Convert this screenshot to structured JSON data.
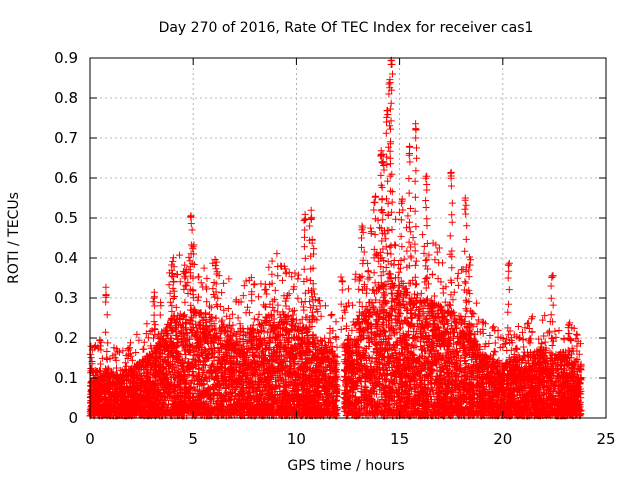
{
  "chart_data": {
    "type": "scatter",
    "title": "Day 270 of 2016, Rate Of TEC Index for receiver cas1",
    "xlabel": "GPS time / hours",
    "ylabel": "ROTI / TECUs",
    "xlim": [
      0,
      25
    ],
    "ylim": [
      0,
      0.9
    ],
    "xticks": [
      "0",
      "5",
      "10",
      "15",
      "20",
      "25"
    ],
    "yticks": [
      "0",
      "0.1",
      "0.2",
      "0.3",
      "0.4",
      "0.5",
      "0.6",
      "0.7",
      "0.8",
      "0.9"
    ],
    "grid": true,
    "marker": "plus",
    "color": "#ff0000",
    "data_extent": {
      "x_min": 0.0,
      "x_max": 23.8,
      "gap": [
        12.0,
        12.3
      ]
    },
    "peaks": [
      {
        "x": 0.5,
        "y": 0.21
      },
      {
        "x": 0.8,
        "y": 0.33
      },
      {
        "x": 3.1,
        "y": 0.32
      },
      {
        "x": 4.0,
        "y": 0.38
      },
      {
        "x": 4.6,
        "y": 0.37
      },
      {
        "x": 4.9,
        "y": 0.51
      },
      {
        "x": 5.0,
        "y": 0.45
      },
      {
        "x": 6.1,
        "y": 0.4
      },
      {
        "x": 8.5,
        "y": 0.35
      },
      {
        "x": 10.4,
        "y": 0.51
      },
      {
        "x": 10.7,
        "y": 0.52
      },
      {
        "x": 10.8,
        "y": 0.45
      },
      {
        "x": 12.2,
        "y": 0.36
      },
      {
        "x": 13.2,
        "y": 0.49
      },
      {
        "x": 13.8,
        "y": 0.56
      },
      {
        "x": 14.1,
        "y": 0.68
      },
      {
        "x": 14.2,
        "y": 0.66
      },
      {
        "x": 14.4,
        "y": 0.78
      },
      {
        "x": 14.5,
        "y": 0.85
      },
      {
        "x": 14.6,
        "y": 0.9
      },
      {
        "x": 15.1,
        "y": 0.56
      },
      {
        "x": 15.5,
        "y": 0.68
      },
      {
        "x": 15.8,
        "y": 0.74
      },
      {
        "x": 16.3,
        "y": 0.61
      },
      {
        "x": 17.5,
        "y": 0.62
      },
      {
        "x": 18.2,
        "y": 0.55
      },
      {
        "x": 18.4,
        "y": 0.41
      },
      {
        "x": 20.3,
        "y": 0.39
      },
      {
        "x": 22.4,
        "y": 0.37
      },
      {
        "x": 23.2,
        "y": 0.24
      }
    ],
    "envelope": [
      {
        "x": 0,
        "y": 0.12
      },
      {
        "x": 1,
        "y": 0.11
      },
      {
        "x": 2,
        "y": 0.12
      },
      {
        "x": 3,
        "y": 0.16
      },
      {
        "x": 4,
        "y": 0.25
      },
      {
        "x": 5,
        "y": 0.27
      },
      {
        "x": 6,
        "y": 0.25
      },
      {
        "x": 7,
        "y": 0.22
      },
      {
        "x": 8,
        "y": 0.22
      },
      {
        "x": 9,
        "y": 0.27
      },
      {
        "x": 10,
        "y": 0.24
      },
      {
        "x": 11,
        "y": 0.2
      },
      {
        "x": 12,
        "y": 0.15
      },
      {
        "x": 13,
        "y": 0.25
      },
      {
        "x": 14,
        "y": 0.33
      },
      {
        "x": 15,
        "y": 0.33
      },
      {
        "x": 16,
        "y": 0.3
      },
      {
        "x": 17,
        "y": 0.28
      },
      {
        "x": 18,
        "y": 0.25
      },
      {
        "x": 19,
        "y": 0.16
      },
      {
        "x": 20,
        "y": 0.13
      },
      {
        "x": 21,
        "y": 0.15
      },
      {
        "x": 22,
        "y": 0.17
      },
      {
        "x": 23,
        "y": 0.15
      },
      {
        "x": 23.8,
        "y": 0.14
      }
    ]
  }
}
